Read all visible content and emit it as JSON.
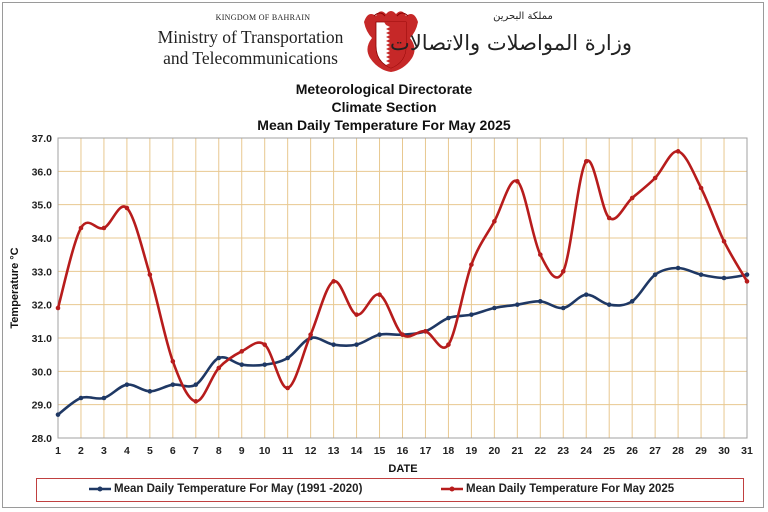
{
  "header": {
    "kingdom": "KINGDOM OF BAHRAIN",
    "ministry_line1": "Ministry of Transportation",
    "ministry_line2": "and Telecommunications",
    "arabic_small": "مملكة البحرين",
    "arabic_main": "وزارة المواصلات والاتصالات"
  },
  "chart_data": {
    "type": "line",
    "title": "Mean Daily Temperature For May 2025",
    "title_lines": [
      "Meteorological Directorate",
      "Climate Section",
      "Mean Daily Temperature For May 2025"
    ],
    "xlabel": "DATE",
    "ylabel": "Temperature °C",
    "ylim": [
      28.0,
      37.0
    ],
    "yticks": [
      "28.0",
      "29.0",
      "30.0",
      "31.0",
      "32.0",
      "33.0",
      "34.0",
      "35.0",
      "36.0",
      "37.0"
    ],
    "categories": [
      "1",
      "2",
      "3",
      "4",
      "5",
      "6",
      "7",
      "8",
      "9",
      "10",
      "11",
      "12",
      "13",
      "14",
      "15",
      "16",
      "17",
      "18",
      "19",
      "20",
      "21",
      "22",
      "23",
      "24",
      "25",
      "26",
      "27",
      "28",
      "29",
      "30",
      "31"
    ],
    "grid": true,
    "legend_position": "bottom",
    "series": [
      {
        "name": "Mean Daily Temperature For May (1991 -2020)",
        "color": "#1f3864",
        "values": [
          28.7,
          29.2,
          29.2,
          29.6,
          29.4,
          29.6,
          29.6,
          30.4,
          30.2,
          30.2,
          30.4,
          31.0,
          30.8,
          30.8,
          31.1,
          31.1,
          31.2,
          31.6,
          31.7,
          31.9,
          32.0,
          32.1,
          31.9,
          32.3,
          32.0,
          32.1,
          32.9,
          33.1,
          32.9,
          32.8,
          32.9
        ]
      },
      {
        "name": "Mean Daily Temperature For May 2025",
        "color": "#b71c1c",
        "values": [
          31.9,
          34.3,
          34.3,
          34.9,
          32.9,
          30.3,
          29.1,
          30.1,
          30.6,
          30.8,
          29.5,
          31.1,
          32.7,
          31.7,
          32.3,
          31.1,
          31.2,
          30.8,
          33.2,
          34.5,
          35.7,
          33.5,
          33.0,
          36.3,
          34.6,
          35.2,
          35.8,
          36.6,
          35.5,
          33.9,
          32.7
        ]
      }
    ]
  }
}
